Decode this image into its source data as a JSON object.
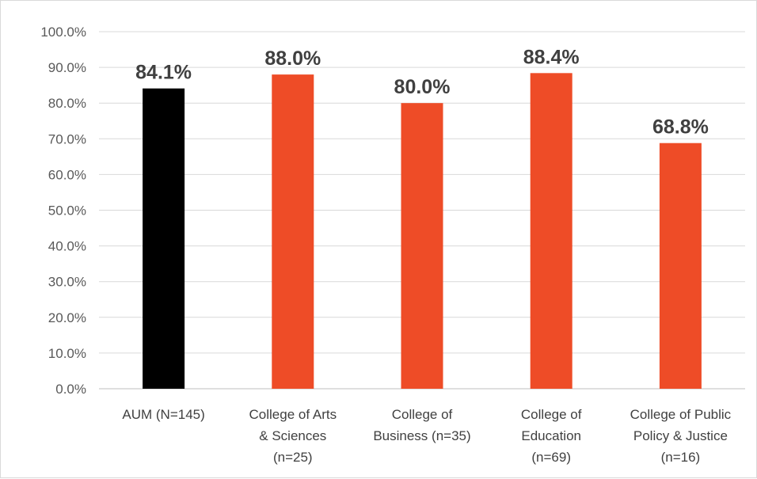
{
  "chart_data": {
    "type": "bar",
    "title": "",
    "xlabel": "",
    "ylabel": "",
    "categories": [
      [
        "AUM (N=145)"
      ],
      [
        "College of Arts",
        "& Sciences",
        "(n=25)"
      ],
      [
        "College of",
        "Business (n=35)"
      ],
      [
        "College of",
        "Education",
        "(n=69)"
      ],
      [
        "College of Public",
        "Policy & Justice",
        "(n=16)"
      ]
    ],
    "values": [
      84.1,
      88.0,
      80.0,
      88.4,
      68.8
    ],
    "data_labels": [
      "84.1%",
      "88.0%",
      "80.0%",
      "88.4%",
      "68.8%"
    ],
    "colors": [
      "#000000",
      "#ee4c27",
      "#ee4c27",
      "#ee4c27",
      "#ee4c27"
    ],
    "ylim": [
      0,
      100
    ],
    "yticks": [
      0,
      10,
      20,
      30,
      40,
      50,
      60,
      70,
      80,
      90,
      100
    ],
    "ytick_labels": [
      "0.0%",
      "10.0%",
      "20.0%",
      "30.0%",
      "40.0%",
      "50.0%",
      "60.0%",
      "70.0%",
      "80.0%",
      "90.0%",
      "100.0%"
    ],
    "grid": true,
    "legend": "none"
  }
}
